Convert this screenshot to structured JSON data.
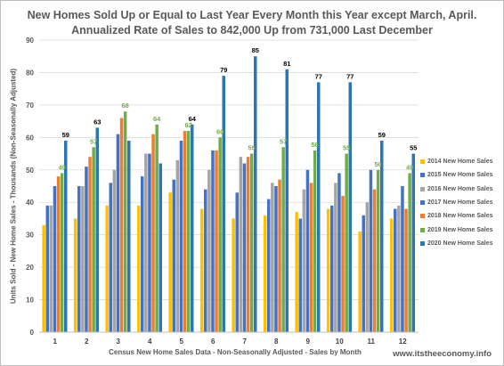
{
  "watermark": "www.itstheeconomy.info",
  "chart_data": {
    "type": "bar",
    "title_lines": [
      "New Homes Sold Up or Equal to Last Year  Every Month this Year except March, April.",
      "Annualized Rate of Sales to 842,000 Up from 731,000 Last December"
    ],
    "xlabel": "Census New Home Sales Data - Non-Seasonally Adjusted - Sales by Month",
    "ylabel": "Units Sold - New Home Sales - Thousands (Non-Seasonally Adjusted)",
    "ylim": [
      0,
      90
    ],
    "yticks": [
      0,
      10,
      20,
      30,
      40,
      50,
      60,
      70,
      80,
      90
    ],
    "grid": true,
    "legend_position": "right",
    "categories": [
      "1",
      "2",
      "3",
      "4",
      "5",
      "6",
      "7",
      "8",
      "9",
      "10",
      "11",
      "12"
    ],
    "series": [
      {
        "name": "2014 New Home Sales",
        "color": "#FFC000",
        "values": [
          33,
          35,
          39,
          39,
          43,
          38,
          35,
          36,
          37,
          38,
          31,
          35
        ]
      },
      {
        "name": "2015 New Home Sales",
        "color": "#4472C4",
        "values": [
          39,
          45,
          46,
          48,
          47,
          44,
          43,
          41,
          35,
          39,
          36,
          38
        ]
      },
      {
        "name": "2016 New Home Sales",
        "color": "#A5A5A5",
        "values": [
          39,
          45,
          50,
          55,
          53,
          50,
          54,
          46,
          44,
          46,
          40,
          39
        ]
      },
      {
        "name": "2017 New Home Sales",
        "color": "#4472C4",
        "values": [
          45,
          51,
          61,
          55,
          59,
          56,
          52,
          45,
          50,
          49,
          50,
          45
        ]
      },
      {
        "name": "2018 New Home Sales",
        "color": "#ED7D31",
        "values": [
          48,
          54,
          66,
          61,
          62,
          56,
          54,
          47,
          46,
          42,
          44,
          38
        ]
      },
      {
        "name": "2019 New Home Sales",
        "color": "#70AD47",
        "values": [
          49,
          57,
          68,
          64,
          62,
          60,
          55,
          57,
          56,
          55,
          50,
          49
        ]
      },
      {
        "name": "2020 New Home Sales",
        "color": "#2E75B6",
        "values": [
          59,
          63,
          59,
          52,
          64,
          79,
          85,
          81,
          77,
          77,
          59,
          55
        ]
      }
    ],
    "data_labels": [
      {
        "series": "2019 New Home Sales",
        "color": "#70AD47",
        "values": [
          49,
          57,
          68,
          64,
          62,
          60,
          55,
          57,
          56,
          55,
          50,
          49
        ],
        "months": [
          "1",
          "2",
          "3",
          "4",
          "5",
          "6",
          "7",
          "8",
          "9",
          "10",
          "11",
          "12"
        ]
      },
      {
        "series": "2020 New Home Sales",
        "color": "#000000",
        "values": [
          59,
          63,
          85,
          81,
          77,
          77,
          59,
          55,
          64,
          79
        ],
        "months": [
          "1",
          "2",
          "7",
          "8",
          "9",
          "10",
          "11",
          "12",
          "5",
          "6"
        ]
      }
    ]
  }
}
